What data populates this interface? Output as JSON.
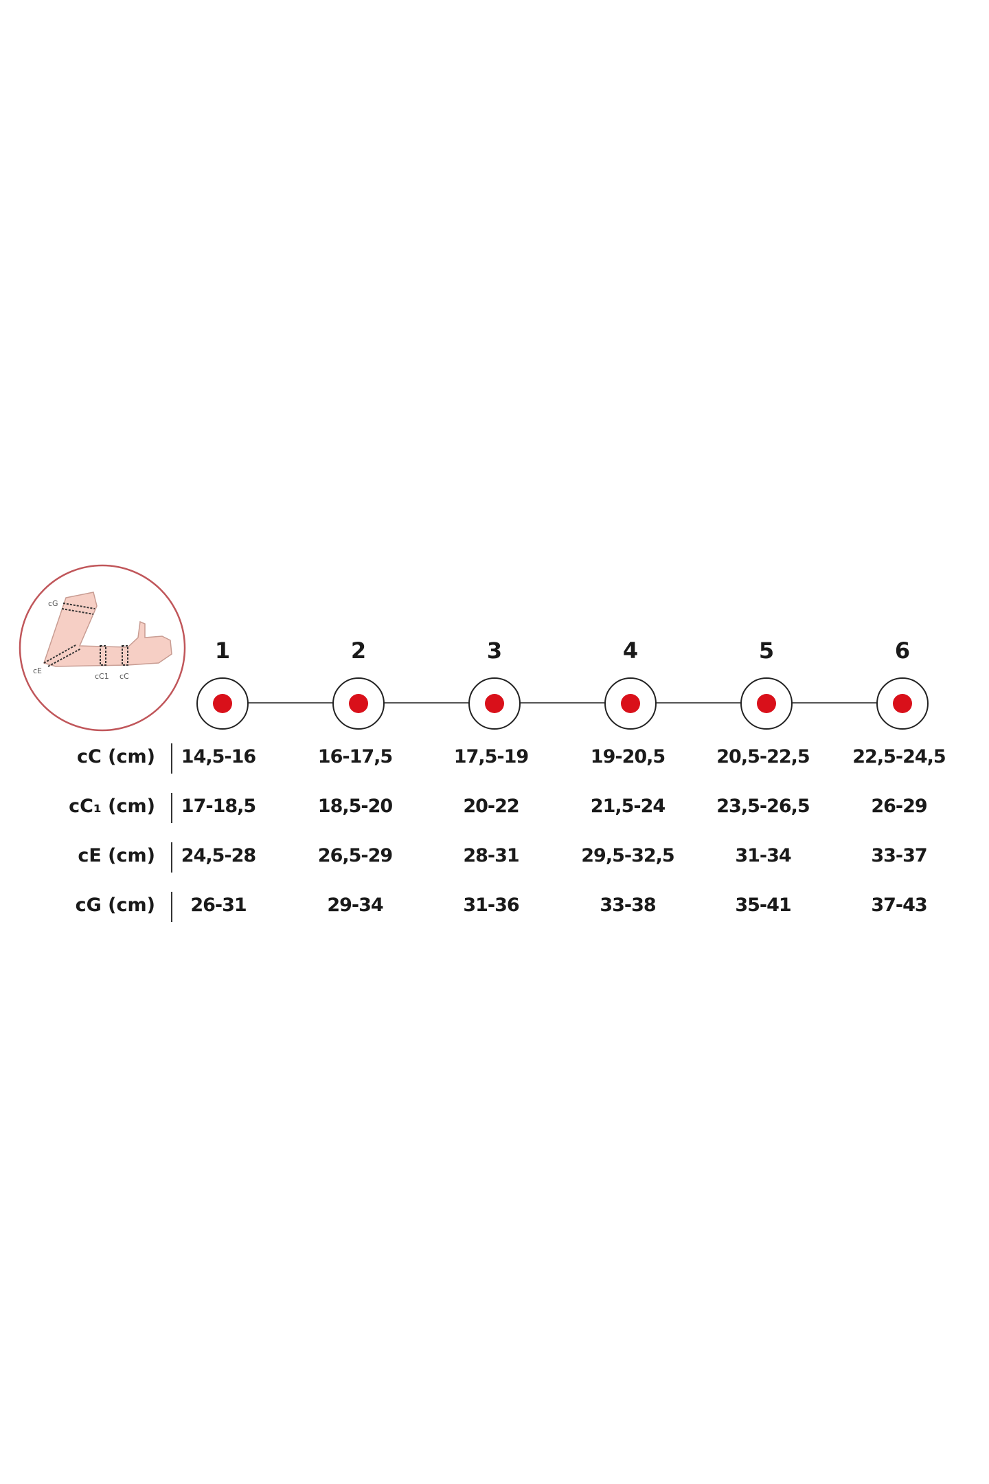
{
  "colors": {
    "accent": "#d9101a",
    "circle_border": "#c0565a",
    "skin": "#f6cfc5"
  },
  "illustration": {
    "labels": {
      "cG": "cG",
      "cE": "cE",
      "cC1": "cC1",
      "cC": "cC"
    }
  },
  "sizes": [
    "1",
    "2",
    "3",
    "4",
    "5",
    "6"
  ],
  "rows": [
    {
      "label": "cC (cm)",
      "values": [
        "14,5-16",
        "16-17,5",
        "17,5-19",
        "19-20,5",
        "20,5-22,5",
        "22,5-24,5"
      ]
    },
    {
      "label": "cC₁ (cm)",
      "values": [
        "17-18,5",
        "18,5-20",
        "20-22",
        "21,5-24",
        "23,5-26,5",
        "26-29"
      ]
    },
    {
      "label": "cE (cm)",
      "values": [
        "24,5-28",
        "26,5-29",
        "28-31",
        "29,5-32,5",
        "31-34",
        "33-37"
      ]
    },
    {
      "label": "cG (cm)",
      "values": [
        "26-31",
        "29-34",
        "31-36",
        "33-38",
        "35-41",
        "37-43"
      ]
    }
  ]
}
